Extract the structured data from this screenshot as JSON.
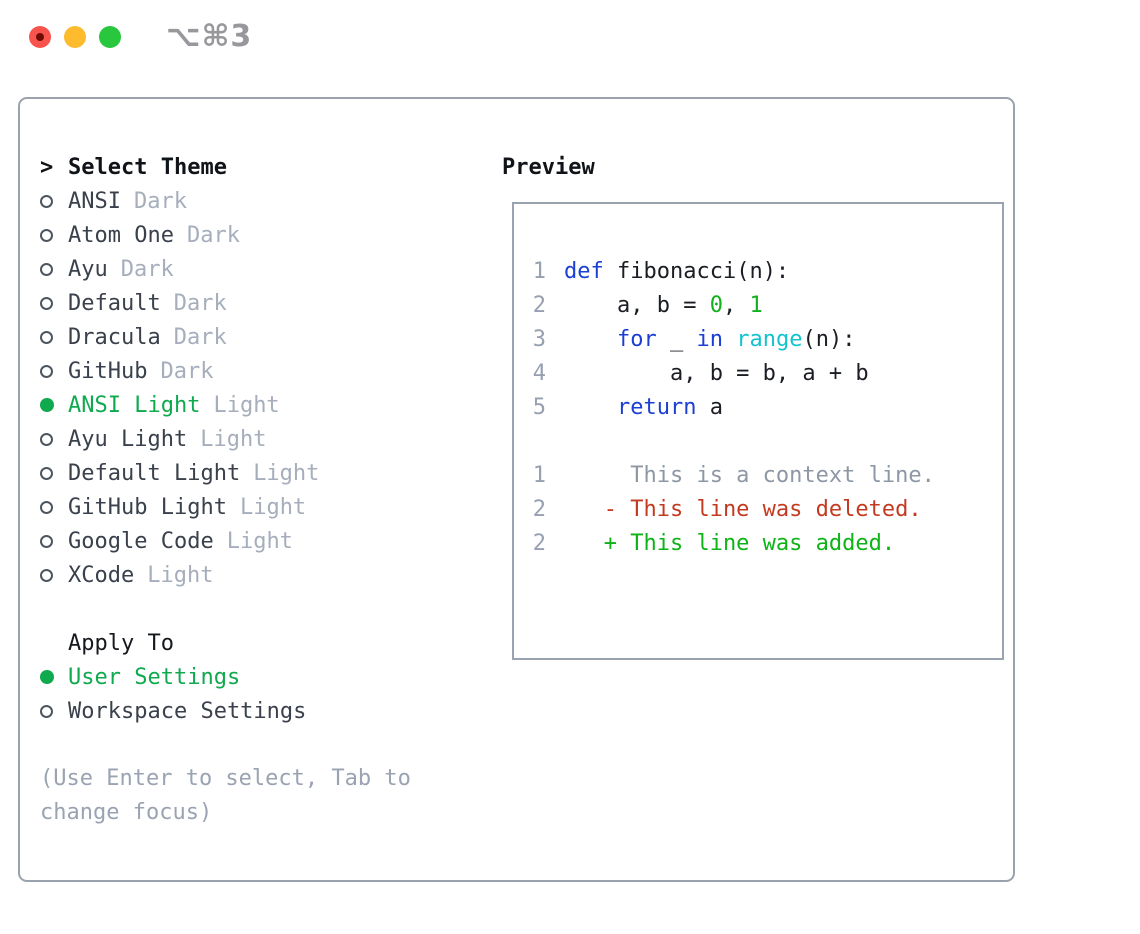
{
  "titlebar": {
    "shortcut": "⌥⌘3",
    "traffic_lights": [
      "close",
      "minimize",
      "zoom"
    ]
  },
  "theme_panel": {
    "cursor": ">",
    "header": "Select Theme",
    "themes": [
      {
        "name": "ANSI",
        "variant": "Dark",
        "selected": false
      },
      {
        "name": "Atom One",
        "variant": "Dark",
        "selected": false
      },
      {
        "name": "Ayu",
        "variant": "Dark",
        "selected": false
      },
      {
        "name": "Default",
        "variant": "Dark",
        "selected": false
      },
      {
        "name": "Dracula",
        "variant": "Dark",
        "selected": false
      },
      {
        "name": "GitHub",
        "variant": "Dark",
        "selected": false
      },
      {
        "name": "ANSI Light",
        "variant": "Light",
        "selected": true
      },
      {
        "name": "Ayu Light",
        "variant": "Light",
        "selected": false
      },
      {
        "name": "Default Light",
        "variant": "Light",
        "selected": false
      },
      {
        "name": "GitHub Light",
        "variant": "Light",
        "selected": false
      },
      {
        "name": "Google Code",
        "variant": "Light",
        "selected": false
      },
      {
        "name": "XCode",
        "variant": "Light",
        "selected": false
      }
    ],
    "apply_to": {
      "header": "Apply To",
      "options": [
        {
          "label": "User Settings",
          "selected": true
        },
        {
          "label": "Workspace Settings",
          "selected": false
        }
      ]
    },
    "hint": "(Use Enter to select, Tab to change focus)"
  },
  "preview_panel": {
    "header": "Preview",
    "code_lines": [
      {
        "num": "1",
        "tokens": [
          {
            "c": "kw",
            "t": "def"
          },
          {
            "c": "pl",
            "t": " fibonacci(n):"
          }
        ]
      },
      {
        "num": "2",
        "tokens": [
          {
            "c": "pl",
            "t": "    a, b = "
          },
          {
            "c": "num",
            "t": "0"
          },
          {
            "c": "pl",
            "t": ", "
          },
          {
            "c": "num",
            "t": "1"
          }
        ]
      },
      {
        "num": "3",
        "tokens": [
          {
            "c": "pl",
            "t": "    "
          },
          {
            "c": "kw",
            "t": "for"
          },
          {
            "c": "pl",
            "t": " _ "
          },
          {
            "c": "kw",
            "t": "in"
          },
          {
            "c": "pl",
            "t": " "
          },
          {
            "c": "fn",
            "t": "range"
          },
          {
            "c": "pl",
            "t": "(n):"
          }
        ]
      },
      {
        "num": "4",
        "tokens": [
          {
            "c": "pl",
            "t": "        a, b = b, a + b"
          }
        ]
      },
      {
        "num": "5",
        "tokens": [
          {
            "c": "pl",
            "t": "    "
          },
          {
            "c": "kw",
            "t": "return"
          },
          {
            "c": "pl",
            "t": " a"
          }
        ]
      },
      {
        "num": "",
        "tokens": []
      },
      {
        "num": "1",
        "num_class": "ctx",
        "tokens": [
          {
            "c": "ctx",
            "t": "     This is a context line."
          }
        ]
      },
      {
        "num": "2",
        "tokens": [
          {
            "c": "del",
            "t": "   - This line was deleted."
          }
        ]
      },
      {
        "num": "2",
        "tokens": [
          {
            "c": "add",
            "t": "   + This line was added."
          }
        ]
      }
    ]
  },
  "colors": {
    "selected_green": "#0fa94e",
    "keyword_blue": "#1b3fd3",
    "literal_green": "#10b01e",
    "builtin_cyan": "#14c3cd",
    "deleted_red": "#c43a21",
    "added_green": "#0db317",
    "muted_gray": "#9aa3b2",
    "border_gray": "#9aa2ae",
    "traffic_red": "#f8534c",
    "traffic_yellow": "#fdbb2d",
    "traffic_green": "#28c73e"
  }
}
